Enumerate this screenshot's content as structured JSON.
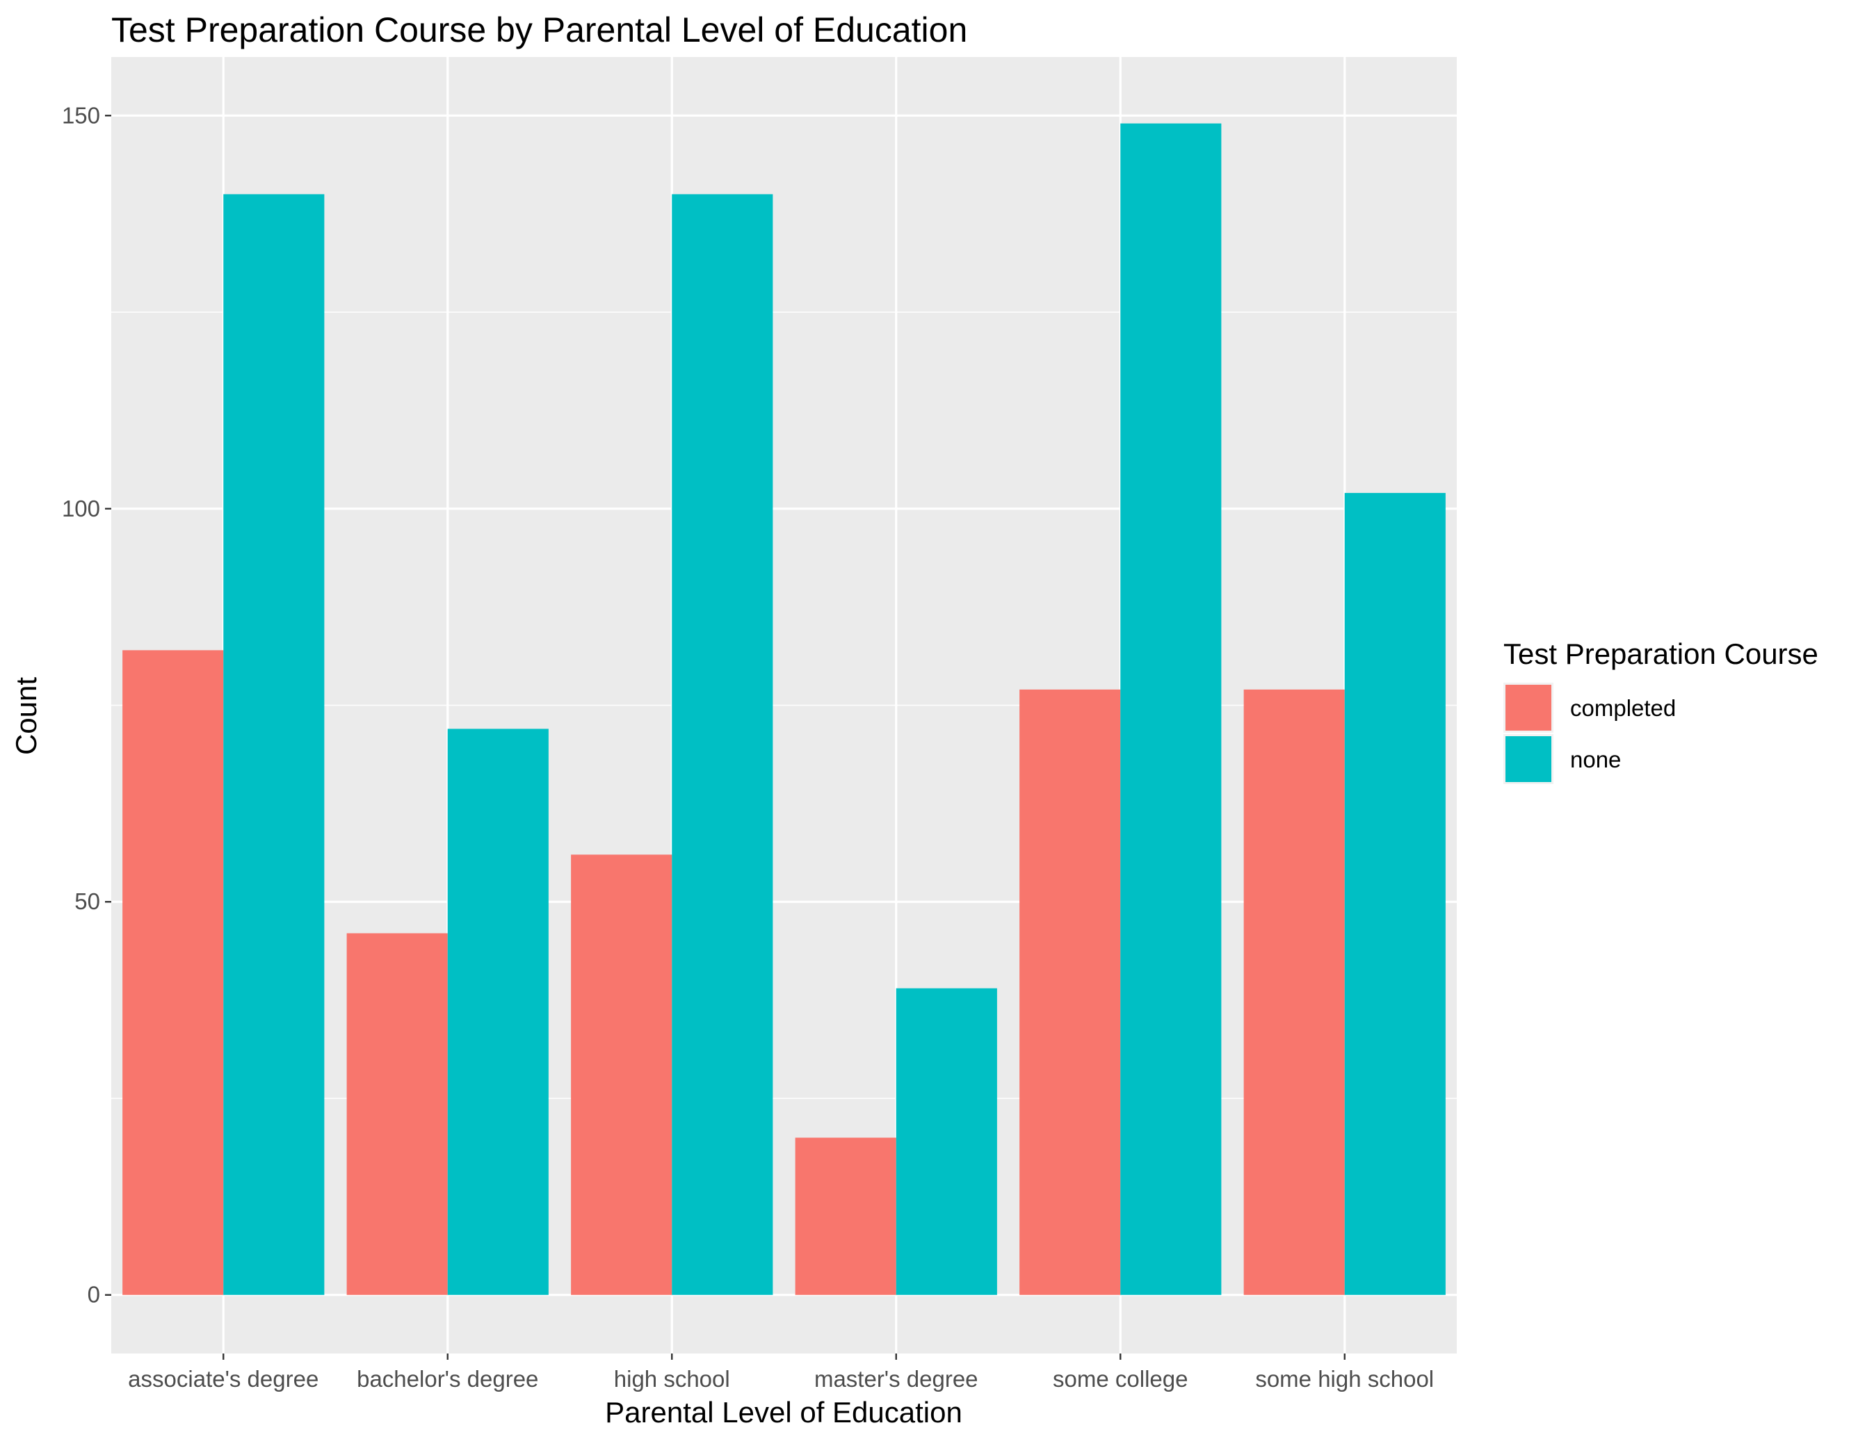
{
  "chart_data": {
    "type": "bar",
    "title": "Test Preparation Course by Parental Level of Education",
    "xlabel": "Parental Level of Education",
    "ylabel": "Count",
    "categories": [
      "associate's degree",
      "bachelor's degree",
      "high school",
      "master's degree",
      "some college",
      "some high school"
    ],
    "series": [
      {
        "name": "completed",
        "color": "#F8766D",
        "values": [
          82,
          46,
          56,
          20,
          77,
          77
        ]
      },
      {
        "name": "none",
        "color": "#00BFC4",
        "values": [
          140,
          72,
          140,
          39,
          149,
          102
        ]
      }
    ],
    "ylim": [
      -7.45,
      157.45
    ],
    "yticks": [
      0,
      50,
      100,
      150
    ],
    "grid": true,
    "legend": {
      "title": "Test Preparation Course",
      "position": "right"
    },
    "panel_background": "#EBEBEB"
  }
}
